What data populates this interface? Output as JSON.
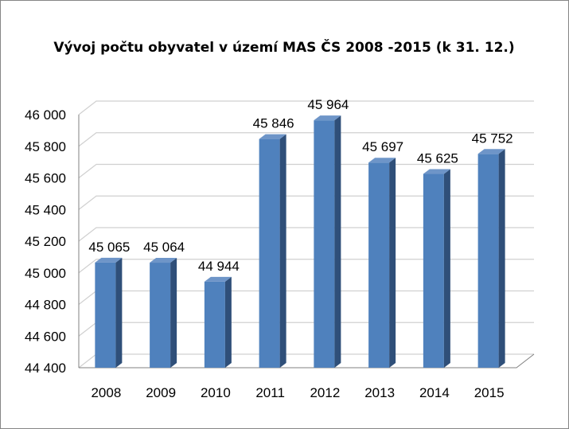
{
  "chart_data": {
    "type": "bar",
    "title": "Vývoj počtu obyvatel v území MAS ČS 2008 -2015 (k 31. 12.)",
    "xlabel": "",
    "ylabel": "",
    "categories": [
      "2008",
      "2009",
      "2010",
      "2011",
      "2012",
      "2013",
      "2014",
      "2015"
    ],
    "values": [
      45065,
      45064,
      44944,
      45846,
      45964,
      45697,
      45625,
      45752
    ],
    "data_labels": [
      "45 065",
      "45 064",
      "44 944",
      "45 846",
      "45 964",
      "45 697",
      "45 625",
      "45 752"
    ],
    "ylim": [
      44400,
      46000
    ],
    "yticks": [
      44400,
      44600,
      44800,
      45000,
      45200,
      45400,
      45600,
      45800,
      46000
    ],
    "ytick_labels": [
      "44 400",
      "44 600",
      "44 800",
      "45 000",
      "45 200",
      "45 400",
      "45 600",
      "45 800",
      "46 000"
    ],
    "grid": true,
    "legend": "none",
    "colors": {
      "bar_front": "#4f81bd",
      "bar_side": "#2f4f79",
      "bar_top": "#6e95c8",
      "grid": "#d0d0d0",
      "axis": "#808080"
    }
  }
}
